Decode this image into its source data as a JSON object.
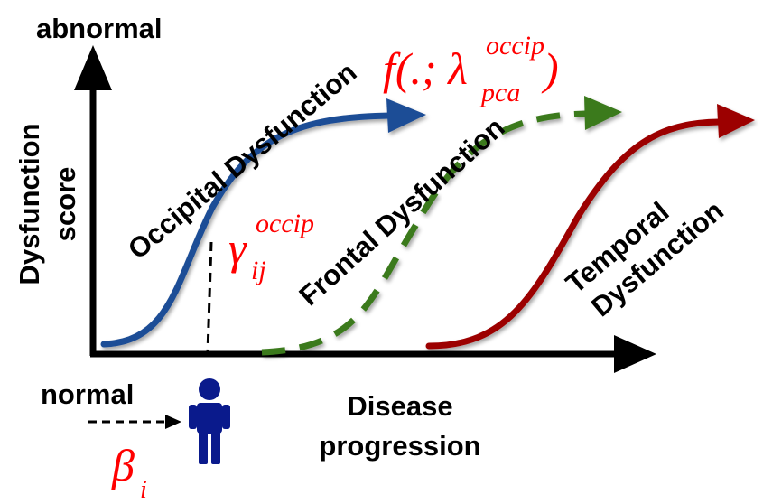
{
  "y_axis": {
    "top_label": "abnormal",
    "title_line1": "Dysfunction",
    "title_line2": "score"
  },
  "x_axis": {
    "bottom_label": "normal",
    "title_line1": "Disease",
    "title_line2": "progression"
  },
  "curves": [
    {
      "label": "Occipital Dysfunction",
      "color": "#1f4e96",
      "style": "solid"
    },
    {
      "label": "Frontal Dysfunction",
      "color": "#3a7a1c",
      "style": "dashed"
    },
    {
      "label_line1": "Temporal",
      "label_line2": "Dysfunction",
      "color": "#9c0000",
      "style": "solid"
    }
  ],
  "annotations": {
    "f_main": "f(.; λ",
    "f_sup": "occip",
    "f_sub": "pca",
    "f_close": ")",
    "gamma_main": "γ",
    "gamma_sup": "occip",
    "gamma_sub": "ij",
    "beta_main": "β",
    "beta_sub": "i",
    "math_color": "#ff0000"
  },
  "icons": {
    "person": "person-icon",
    "person_color": "#0a1a8c"
  }
}
